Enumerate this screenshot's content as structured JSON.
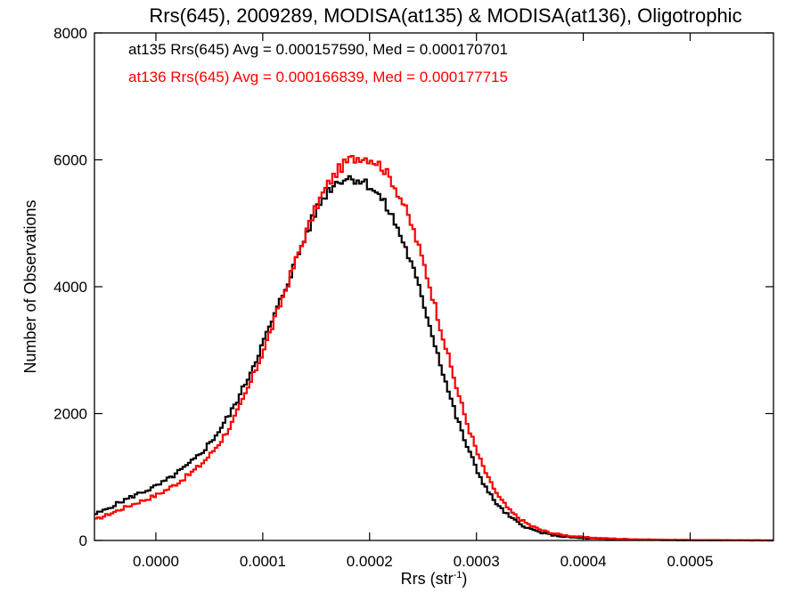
{
  "chart_data": {
    "type": "line",
    "title": "Rrs(645), 2009289, MODISA(at135) & MODISA(at136), Oligotrophic",
    "xlabel_main": "Rrs (str",
    "xlabel_sup": "-1",
    "xlabel_close": ")",
    "ylabel": "Number of Observations",
    "xlim": [
      -5.75e-05,
      0.000578
    ],
    "ylim": [
      0,
      8000
    ],
    "x_ticks": [
      {
        "value": 0.0,
        "label": "0.0000"
      },
      {
        "value": 0.0001,
        "label": "0.0001"
      },
      {
        "value": 0.0002,
        "label": "0.0002"
      },
      {
        "value": 0.0003,
        "label": "0.0003"
      },
      {
        "value": 0.0004,
        "label": "0.0004"
      },
      {
        "value": 0.0005,
        "label": "0.0005"
      }
    ],
    "y_ticks": [
      {
        "value": 0,
        "label": "0"
      },
      {
        "value": 2000,
        "label": "2000"
      },
      {
        "value": 4000,
        "label": "4000"
      },
      {
        "value": 6000,
        "label": "6000"
      },
      {
        "value": 8000,
        "label": "8000"
      }
    ],
    "legend_placement": "top-left",
    "series": [
      {
        "name": "at135",
        "legend": "at135 Rrs(645) Avg = 0.000157590, Med = 0.000170701",
        "color": "#000000",
        "step": true,
        "points": [
          [
            -5.75e-05,
            420
          ],
          [
            -5e-05,
            470
          ],
          [
            -4e-05,
            560
          ],
          [
            -3e-05,
            640
          ],
          [
            -2e-05,
            720
          ],
          [
            -1e-05,
            790
          ],
          [
            0.0,
            860
          ],
          [
            1e-05,
            960
          ],
          [
            2e-05,
            1080
          ],
          [
            3e-05,
            1200
          ],
          [
            4e-05,
            1360
          ],
          [
            5e-05,
            1550
          ],
          [
            6e-05,
            1780
          ],
          [
            7e-05,
            2050
          ],
          [
            8e-05,
            2380
          ],
          [
            9e-05,
            2760
          ],
          [
            0.0001,
            3150
          ],
          [
            0.00011,
            3550
          ],
          [
            0.00012,
            3980
          ],
          [
            0.00013,
            4420
          ],
          [
            0.00014,
            4850
          ],
          [
            0.00015,
            5250
          ],
          [
            0.00016,
            5520
          ],
          [
            0.00017,
            5680
          ],
          [
            0.00018,
            5720
          ],
          [
            0.00019,
            5680
          ],
          [
            0.0002,
            5580
          ],
          [
            0.00021,
            5380
          ],
          [
            0.00022,
            5100
          ],
          [
            0.00023,
            4720
          ],
          [
            0.00024,
            4250
          ],
          [
            0.00025,
            3700
          ],
          [
            0.00026,
            3100
          ],
          [
            0.00027,
            2500
          ],
          [
            0.00028,
            1950
          ],
          [
            0.00029,
            1480
          ],
          [
            0.0003,
            1080
          ],
          [
            0.00031,
            760
          ],
          [
            0.00032,
            530
          ],
          [
            0.00033,
            370
          ],
          [
            0.00034,
            255
          ],
          [
            0.00035,
            175
          ],
          [
            0.00036,
            120
          ],
          [
            0.00037,
            85
          ],
          [
            0.00038,
            60
          ],
          [
            0.00039,
            45
          ],
          [
            0.0004,
            35
          ],
          [
            0.00042,
            22
          ],
          [
            0.00044,
            14
          ],
          [
            0.00046,
            9
          ],
          [
            0.00048,
            6
          ],
          [
            0.0005,
            4
          ],
          [
            0.00053,
            2
          ],
          [
            0.00056,
            1
          ],
          [
            0.000578,
            0
          ]
        ]
      },
      {
        "name": "at136",
        "legend": "at136 Rrs(645) Avg = 0.000166839, Med = 0.000177715",
        "color": "#ff0000",
        "step": true,
        "points": [
          [
            -5.75e-05,
            330
          ],
          [
            -5e-05,
            380
          ],
          [
            -4e-05,
            450
          ],
          [
            -3e-05,
            520
          ],
          [
            -2e-05,
            590
          ],
          [
            -1e-05,
            650
          ],
          [
            0.0,
            720
          ],
          [
            1e-05,
            810
          ],
          [
            2e-05,
            920
          ],
          [
            3e-05,
            1040
          ],
          [
            4e-05,
            1180
          ],
          [
            5e-05,
            1360
          ],
          [
            6e-05,
            1580
          ],
          [
            7e-05,
            1850
          ],
          [
            8e-05,
            2200
          ],
          [
            9e-05,
            2600
          ],
          [
            0.0001,
            3030
          ],
          [
            0.00011,
            3480
          ],
          [
            0.00012,
            3950
          ],
          [
            0.00013,
            4420
          ],
          [
            0.00014,
            4880
          ],
          [
            0.00015,
            5300
          ],
          [
            0.00016,
            5620
          ],
          [
            0.00017,
            5850
          ],
          [
            0.00018,
            6000
          ],
          [
            0.00019,
            6050
          ],
          [
            0.0002,
            6020
          ],
          [
            0.00021,
            5900
          ],
          [
            0.00022,
            5660
          ],
          [
            0.00023,
            5320
          ],
          [
            0.00024,
            4880
          ],
          [
            0.00025,
            4330
          ],
          [
            0.00026,
            3700
          ],
          [
            0.00027,
            3050
          ],
          [
            0.00028,
            2420
          ],
          [
            0.00029,
            1850
          ],
          [
            0.0003,
            1360
          ],
          [
            0.00031,
            970
          ],
          [
            0.00032,
            680
          ],
          [
            0.00033,
            470
          ],
          [
            0.00034,
            330
          ],
          [
            0.00035,
            230
          ],
          [
            0.00036,
            160
          ],
          [
            0.00037,
            115
          ],
          [
            0.00038,
            85
          ],
          [
            0.00039,
            65
          ],
          [
            0.0004,
            50
          ],
          [
            0.00042,
            32
          ],
          [
            0.00044,
            21
          ],
          [
            0.00046,
            14
          ],
          [
            0.00048,
            9
          ],
          [
            0.0005,
            6
          ],
          [
            0.00053,
            3
          ],
          [
            0.00056,
            1
          ],
          [
            0.000578,
            0
          ]
        ]
      }
    ]
  }
}
